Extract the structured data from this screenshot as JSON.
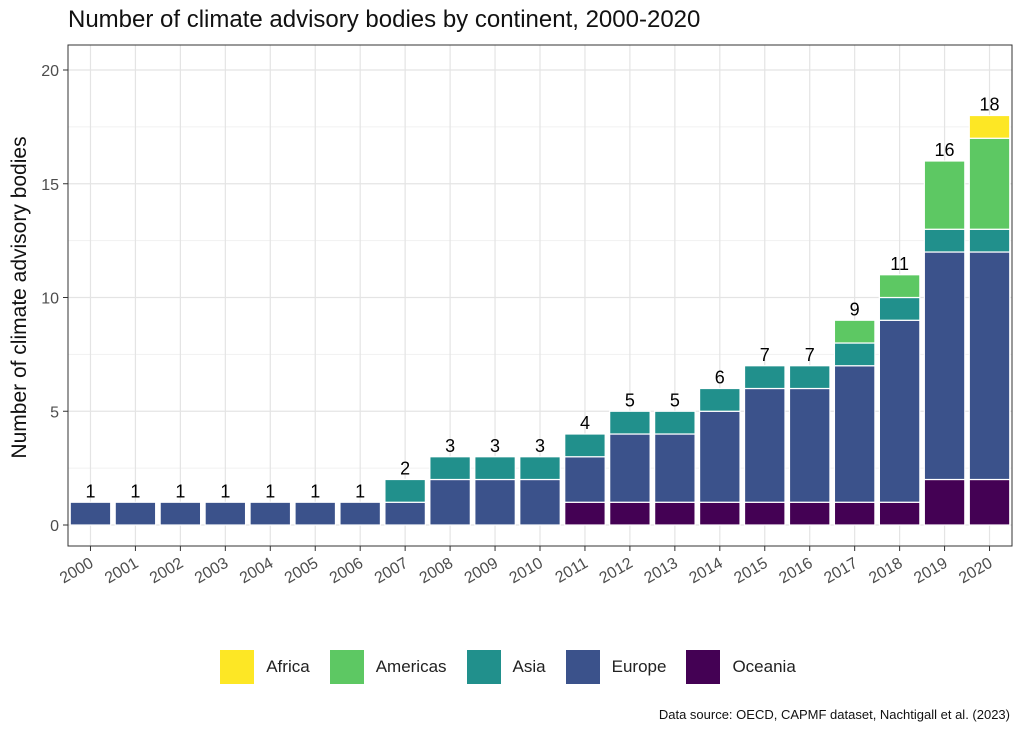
{
  "chart_data": {
    "type": "bar",
    "stacked": true,
    "title": "Number of climate advisory bodies by continent, 2000-2020",
    "ylabel": "Number of climate advisory bodies",
    "xlabel": "",
    "ylim": [
      0,
      20
    ],
    "yticks": [
      0,
      5,
      10,
      15,
      20
    ],
    "grid": true,
    "legend_position": "bottom",
    "categories": [
      "2000",
      "2001",
      "2002",
      "2003",
      "2004",
      "2005",
      "2006",
      "2007",
      "2008",
      "2009",
      "2010",
      "2011",
      "2012",
      "2013",
      "2014",
      "2015",
      "2016",
      "2017",
      "2018",
      "2019",
      "2020"
    ],
    "series": [
      {
        "name": "Oceania",
        "color": "#440154",
        "values": [
          0,
          0,
          0,
          0,
          0,
          0,
          0,
          0,
          0,
          0,
          0,
          1,
          1,
          1,
          1,
          1,
          1,
          1,
          1,
          2,
          2
        ]
      },
      {
        "name": "Europe",
        "color": "#3b528b",
        "values": [
          1,
          1,
          1,
          1,
          1,
          1,
          1,
          1,
          2,
          2,
          2,
          2,
          3,
          3,
          4,
          5,
          5,
          6,
          8,
          10,
          10
        ]
      },
      {
        "name": "Asia",
        "color": "#21908c",
        "values": [
          0,
          0,
          0,
          0,
          0,
          0,
          0,
          1,
          1,
          1,
          1,
          1,
          1,
          1,
          1,
          1,
          1,
          1,
          1,
          1,
          1
        ]
      },
      {
        "name": "Americas",
        "color": "#5dc863",
        "values": [
          0,
          0,
          0,
          0,
          0,
          0,
          0,
          0,
          0,
          0,
          0,
          0,
          0,
          0,
          0,
          0,
          0,
          1,
          1,
          3,
          4
        ]
      },
      {
        "name": "Africa",
        "color": "#fde725",
        "values": [
          0,
          0,
          0,
          0,
          0,
          0,
          0,
          0,
          0,
          0,
          0,
          0,
          0,
          0,
          0,
          0,
          0,
          0,
          0,
          0,
          1
        ]
      }
    ],
    "totals": [
      1,
      1,
      1,
      1,
      1,
      1,
      1,
      2,
      3,
      3,
      3,
      4,
      5,
      5,
      6,
      7,
      7,
      9,
      11,
      16,
      18
    ],
    "legend_order": [
      "Africa",
      "Americas",
      "Asia",
      "Europe",
      "Oceania"
    ],
    "source_note": "Data source: OECD, CAPMF dataset, Nachtigall et al. (2023)"
  }
}
